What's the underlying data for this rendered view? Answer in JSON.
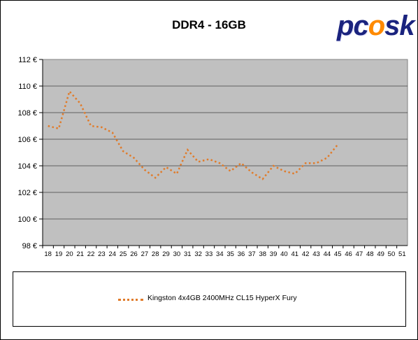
{
  "chart_data": {
    "type": "line",
    "title": "DDR4 - 16GB",
    "x": [
      18,
      19,
      20,
      21,
      22,
      23,
      24,
      25,
      26,
      27,
      28,
      29,
      30,
      31,
      32,
      33,
      34,
      35,
      36,
      37,
      38,
      39,
      40,
      41,
      42,
      43,
      44,
      45
    ],
    "x_ticks": [
      18,
      19,
      20,
      21,
      22,
      23,
      24,
      25,
      26,
      27,
      28,
      29,
      30,
      31,
      32,
      33,
      34,
      35,
      36,
      37,
      38,
      39,
      40,
      41,
      42,
      43,
      44,
      45,
      46,
      47,
      48,
      49,
      50,
      51
    ],
    "xlim": [
      17.5,
      51.5
    ],
    "y_ticks": [
      98,
      100,
      102,
      104,
      106,
      108,
      110,
      112
    ],
    "y_tick_labels": [
      "98 €",
      "100 €",
      "102 €",
      "104 €",
      "106 €",
      "108 €",
      "110 €",
      "112 €"
    ],
    "ylim": [
      98,
      112
    ],
    "grid": true,
    "series": [
      {
        "name": "Kingston 4x4GB 2400MHz CL15 HyperX Fury",
        "color": "#e07b2a",
        "style": "dotted",
        "values": [
          107.0,
          106.8,
          109.6,
          108.7,
          107.0,
          106.9,
          106.5,
          105.1,
          104.6,
          103.7,
          103.1,
          103.9,
          103.4,
          105.2,
          104.3,
          104.5,
          104.2,
          103.6,
          104.2,
          103.5,
          103.0,
          104.0,
          103.6,
          103.4,
          104.2,
          104.2,
          104.6,
          105.6
        ]
      }
    ],
    "legend_position": "bottom"
  },
  "logo": {
    "text_a": "pc",
    "text_b": "o",
    "text_c": "sk"
  }
}
